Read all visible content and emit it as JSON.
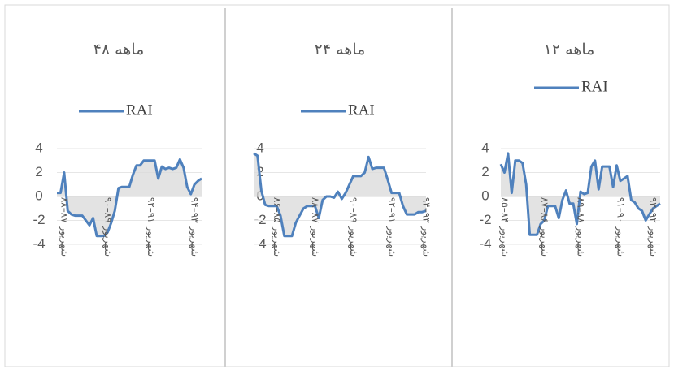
{
  "chart_data": [
    {
      "type": "line",
      "title": "۴۸ ماهه",
      "categories": [
        null,
        null,
        "شهریور ۸۷–۸۸",
        null,
        null,
        null,
        null,
        null,
        null,
        null,
        null,
        null,
        null,
        null,
        "شهریور ۸۹–۹۰",
        null,
        null,
        null,
        null,
        null,
        null,
        null,
        null,
        null,
        null,
        null,
        "شهریور ۹۱–۹۲",
        null,
        null,
        null,
        null,
        null,
        null,
        null,
        null,
        null,
        null,
        null,
        "شهریور ۹۳–۹۴",
        null,
        null
      ],
      "series": [
        {
          "name": "RAI",
          "color": "#4f81bd",
          "values": [
            0.3,
            0.3,
            2.0,
            -1.2,
            -1.5,
            -1.6,
            -1.6,
            -1.6,
            -2.0,
            -2.4,
            -1.8,
            -3.3,
            -3.3,
            -3.3,
            -3.0,
            -2.2,
            -1.2,
            0.7,
            0.8,
            0.8,
            0.8,
            1.8,
            2.6,
            2.6,
            3.0,
            3.0,
            3.0,
            3.0,
            1.5,
            2.5,
            2.3,
            2.4,
            2.3,
            2.4,
            3.1,
            2.4,
            0.8,
            0.2,
            1.0,
            1.3,
            1.5
          ]
        }
      ],
      "ylim": [
        -4,
        4
      ],
      "yticks": [
        -4,
        -2,
        0,
        2,
        4
      ],
      "grid": true,
      "legend": "top"
    },
    {
      "type": "line",
      "title": "۲۴ ماهه",
      "categories": [
        null,
        null,
        null,
        null,
        null,
        null,
        "شهریور ۸۵–۸۶",
        null,
        null,
        null,
        null,
        null,
        null,
        null,
        null,
        null,
        "شهریور ۸۷–۸۸",
        null,
        null,
        null,
        null,
        null,
        null,
        null,
        null,
        null,
        "شهریور ۸۹–۹۰",
        null,
        null,
        null,
        null,
        null,
        null,
        null,
        null,
        null,
        "شهریور ۹۱–۹۲",
        null,
        null,
        null,
        null,
        null,
        null,
        null,
        null,
        "شهریور ۹۳–۹۴"
      ],
      "series": [
        {
          "name": "RAI",
          "color": "#4f81bd",
          "values": [
            3.6,
            3.4,
            0.5,
            -0.7,
            -0.8,
            -0.8,
            -0.8,
            -1.6,
            -3.3,
            -3.3,
            -3.3,
            -2.2,
            -1.6,
            -1.0,
            -0.8,
            -0.8,
            -0.8,
            -1.8,
            -0.3,
            0,
            0,
            -0.1,
            0.4,
            -0.2,
            0.3,
            1.0,
            1.7,
            1.7,
            1.7,
            2.0,
            3.3,
            2.3,
            2.4,
            2.4,
            2.4,
            1.4,
            0.3,
            0.3,
            0.3,
            -0.8,
            -1.5,
            -1.5,
            -1.5,
            -1.3,
            -1.3,
            -1.2
          ]
        }
      ],
      "ylim": [
        -4,
        4
      ],
      "yticks": [
        -4,
        -2,
        0,
        2,
        4
      ],
      "grid": true,
      "legend": "top"
    },
    {
      "type": "line",
      "title": "۱۲ ماهه",
      "categories": [
        null,
        "شهریور ۸۴–۸۵",
        null,
        null,
        null,
        null,
        null,
        null,
        null,
        null,
        null,
        null,
        "شهریور ۸۶–۸۷",
        null,
        null,
        null,
        null,
        null,
        null,
        null,
        null,
        null,
        "شهریور ۸۸–۸۹",
        null,
        null,
        null,
        null,
        null,
        null,
        null,
        null,
        null,
        null,
        "شهریور ۹۰–۹۱",
        null,
        null,
        null,
        null,
        null,
        null,
        null,
        null,
        "شهریور ۹۲–۹۳",
        null,
        null
      ],
      "series": [
        {
          "name": "RAI",
          "color": "#4f81bd",
          "values": [
            2.7,
            2.0,
            3.6,
            0.3,
            3.0,
            3.0,
            2.8,
            1.0,
            -3.2,
            -3.2,
            -3.2,
            -2.3,
            -2.0,
            -0.8,
            -0.8,
            -0.8,
            -1.8,
            -0.3,
            0.5,
            -0.6,
            -0.6,
            -2.3,
            0.4,
            0.2,
            0.3,
            2.5,
            3.0,
            0.6,
            2.5,
            2.5,
            2.5,
            0.8,
            2.6,
            1.3,
            1.5,
            1.7,
            -0.3,
            -0.5,
            -1.0,
            -1.2,
            -2.0,
            -1.5,
            -1.0,
            -0.8,
            -0.6
          ]
        }
      ],
      "ylim": [
        -4,
        4
      ],
      "yticks": [
        -4,
        -2,
        0,
        2,
        4
      ],
      "grid": true,
      "legend": "top"
    }
  ]
}
